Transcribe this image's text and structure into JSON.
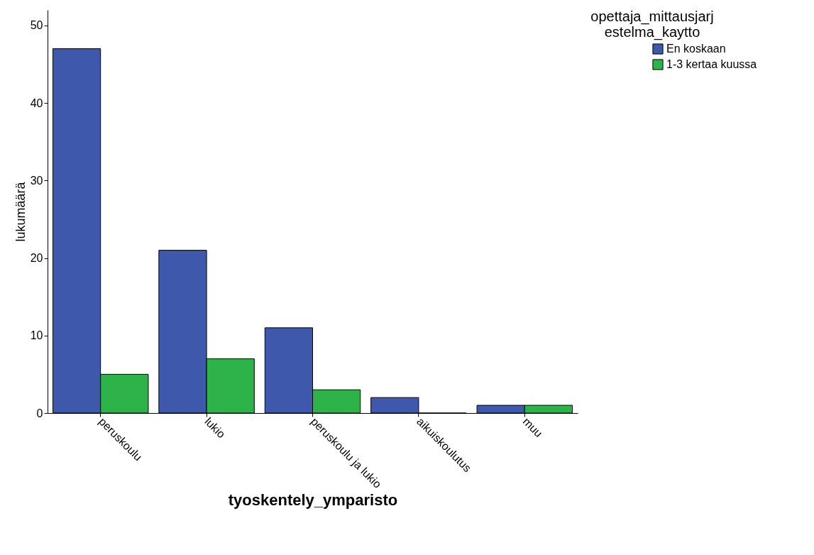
{
  "chart_data": {
    "type": "bar",
    "xlabel": "tyoskentely_ymparisto",
    "ylabel": "lukumäärä",
    "legend_title": "opettaja_mittausjarjestelma_kaytto",
    "categories": [
      "peruskoulu",
      "lukio",
      "peruskoulu ja lukio",
      "aikuiskoulutus",
      "muu"
    ],
    "series": [
      {
        "name": "En koskaan",
        "color": "#3e58ac",
        "values": [
          47,
          21,
          11,
          2,
          1
        ]
      },
      {
        "name": "1-3 kertaa kuussa",
        "color": "#2db34a",
        "values": [
          5,
          7,
          3,
          0,
          1
        ]
      }
    ],
    "ylim": [
      0,
      52
    ],
    "yticks": [
      0,
      10,
      20,
      30,
      40,
      50
    ],
    "grid": false,
    "legend": "top right"
  }
}
